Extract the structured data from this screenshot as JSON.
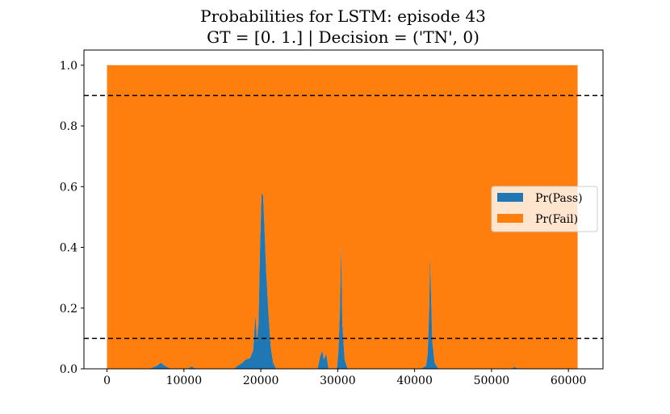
{
  "chart_data": {
    "type": "area",
    "title_lines": [
      "Probabilities for LSTM: episode 43",
      "GT = [0. 1.] | Decision = ('TN', 0)"
    ],
    "xlabel": "",
    "ylabel": "",
    "xlim": [
      -3000,
      64500
    ],
    "ylim": [
      0.0,
      1.05
    ],
    "x_ticks": [
      0,
      10000,
      20000,
      30000,
      40000,
      50000,
      60000
    ],
    "x_tick_labels": [
      "0",
      "10000",
      "20000",
      "30000",
      "40000",
      "50000",
      "60000"
    ],
    "y_ticks": [
      0.0,
      0.2,
      0.4,
      0.6,
      0.8,
      1.0
    ],
    "y_tick_labels": [
      "0.0",
      "0.2",
      "0.4",
      "0.6",
      "0.8",
      "1.0"
    ],
    "thresholds": [
      0.9,
      0.1
    ],
    "stacked": true,
    "legend_position": "center-right",
    "grid": false,
    "series": [
      {
        "name": "Pr(Pass)",
        "color": "#1f77b4",
        "x": [
          0,
          5500,
          6500,
          7000,
          7500,
          8300,
          10500,
          11000,
          11500,
          16500,
          17000,
          17600,
          18000,
          18600,
          19000,
          19300,
          19500,
          19700,
          19900,
          20100,
          20300,
          20500,
          20700,
          21000,
          21300,
          21600,
          22000,
          22400,
          27400,
          27700,
          28000,
          28200,
          28500,
          28800,
          29900,
          30100,
          30300,
          30450,
          30600,
          30900,
          31300,
          40800,
          41500,
          41700,
          41900,
          42000,
          42100,
          42300,
          42600,
          43100,
          52500,
          53000,
          53500,
          61200
        ],
        "values": [
          0.0,
          0.0,
          0.01,
          0.02,
          0.01,
          0.0,
          0.0,
          0.008,
          0.0,
          0.0,
          0.01,
          0.02,
          0.03,
          0.035,
          0.06,
          0.18,
          0.09,
          0.15,
          0.4,
          0.58,
          0.57,
          0.45,
          0.32,
          0.18,
          0.07,
          0.02,
          0.0,
          0.0,
          0.0,
          0.04,
          0.06,
          0.03,
          0.05,
          0.0,
          0.0,
          0.06,
          0.2,
          0.41,
          0.15,
          0.03,
          0.0,
          0.0,
          0.01,
          0.05,
          0.2,
          0.37,
          0.28,
          0.09,
          0.02,
          0.0,
          0.0,
          0.006,
          0.0,
          0.0
        ]
      },
      {
        "name": "Pr(Fail)",
        "color": "#ff7f0e"
      }
    ]
  }
}
